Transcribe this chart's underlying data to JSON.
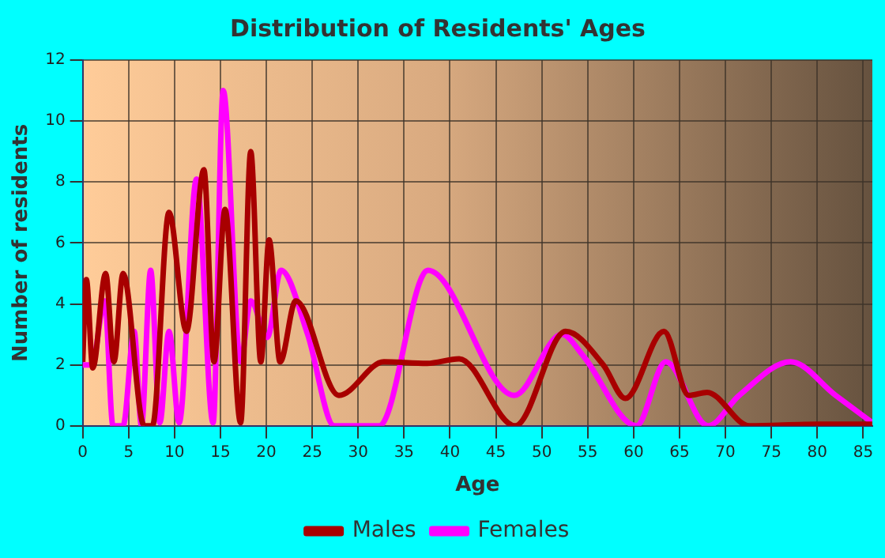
{
  "chart_data": {
    "type": "line",
    "title": "Distribution of Residents' Ages",
    "xlabel": "Age",
    "ylabel": "Number of residents",
    "xlim": [
      0,
      86
    ],
    "xticks": [
      0,
      5,
      10,
      15,
      20,
      25,
      30,
      35,
      40,
      45,
      50,
      55,
      60,
      65,
      70,
      75,
      80,
      85
    ],
    "ylim": [
      0,
      12
    ],
    "yticks": [
      0,
      2,
      4,
      6,
      8,
      10,
      12
    ],
    "grid": true,
    "legend": "bottom",
    "marker": "none",
    "line_style": "solid",
    "series": [
      {
        "name": "Males",
        "color": "#a80000",
        "x": [
          0,
          0.4,
          1.1,
          2.5,
          3.4,
          4.4,
          6.7,
          7.6,
          9.4,
          11.3,
          13.2,
          14.3,
          15.5,
          17.2,
          18.3,
          19.4,
          20.3,
          21.5,
          23.2,
          27.9,
          32.8,
          37.5,
          41,
          47.1,
          52.6,
          56.7,
          59.1,
          63.3,
          66,
          68,
          72.6,
          80,
          86
        ],
        "values": [
          2.1,
          4.8,
          1.9,
          5,
          2.1,
          5,
          0,
          0,
          7,
          3.1,
          8.4,
          2.1,
          7.1,
          0.1,
          9,
          2.1,
          6.1,
          2.1,
          4.1,
          1,
          2.1,
          2.05,
          2.2,
          0,
          3.1,
          2,
          0.9,
          3.1,
          1,
          1.1,
          0,
          0.05,
          0.05
        ]
      },
      {
        "name": "Females",
        "color": "#ff00ff",
        "x": [
          0,
          1,
          2.4,
          3.3,
          4.4,
          5.6,
          6.4,
          7.4,
          8.4,
          9.4,
          10.5,
          12.4,
          14.2,
          15.3,
          17.2,
          18.3,
          20.1,
          21.6,
          24.5,
          27.4,
          32.3,
          37.6,
          47,
          52.2,
          54.5,
          60.3,
          63.5,
          68.1,
          71.5,
          77.1,
          82,
          86
        ],
        "values": [
          2,
          2,
          4.1,
          0,
          0,
          3.1,
          0,
          5.1,
          0.1,
          3.1,
          0.1,
          8.1,
          0.1,
          11,
          2.1,
          4.1,
          2.9,
          5.1,
          3,
          0,
          0,
          5.1,
          1,
          3,
          2.3,
          0,
          2.1,
          0,
          1,
          2.1,
          1,
          0.1
        ]
      }
    ]
  }
}
